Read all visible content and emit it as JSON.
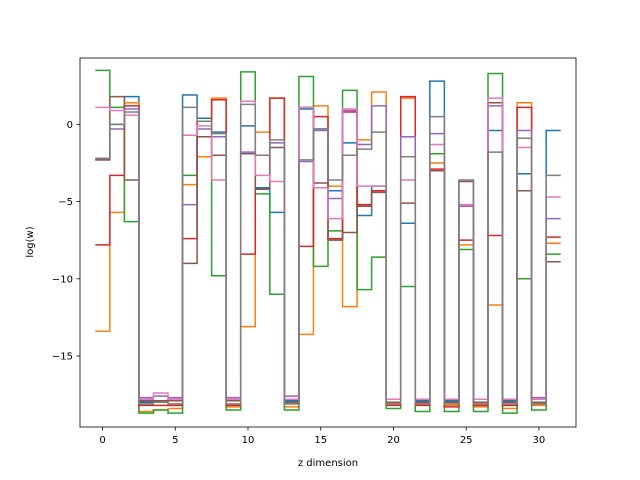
{
  "chart_data": {
    "type": "line",
    "style": "step",
    "title": "",
    "xlabel": "z dimension",
    "ylabel": "log(w)",
    "xlim": [
      -1.55,
      32.55
    ],
    "ylim": [
      -19.6,
      4.3
    ],
    "xticks": [
      0,
      5,
      10,
      15,
      20,
      25,
      30
    ],
    "yticks": [
      -15,
      -10,
      -5,
      0
    ],
    "grid": false,
    "legend": "none",
    "x": [
      0,
      1,
      2,
      3,
      4,
      5,
      6,
      7,
      8,
      9,
      10,
      11,
      12,
      13,
      14,
      15,
      16,
      17,
      18,
      19,
      20,
      21,
      22,
      23,
      24,
      25,
      26,
      27,
      28,
      29,
      30,
      31
    ],
    "series": [
      {
        "color": "#1f77b4",
        "values": [
          -2.3,
          0.0,
          1.8,
          -18.0,
          -18.0,
          -17.8,
          1.9,
          0.4,
          -0.5,
          -17.8,
          -0.1,
          -4.1,
          -5.7,
          -17.9,
          1.0,
          -0.3,
          -4.3,
          -1.2,
          -5.9,
          -4.0,
          -17.8,
          -6.4,
          -17.9,
          2.8,
          -17.9,
          -5.3,
          -17.8,
          -0.4,
          -17.9,
          -3.2,
          -17.8,
          -0.4
        ]
      },
      {
        "color": "#ff7f0e",
        "values": [
          -13.4,
          -5.7,
          1.4,
          -18.6,
          -18.5,
          -18.4,
          -3.9,
          -2.1,
          1.7,
          -18.3,
          -13.1,
          -0.5,
          1.7,
          -18.3,
          -13.6,
          1.2,
          -4.0,
          -11.8,
          -1.0,
          2.1,
          -18.1,
          1.7,
          -18.1,
          -2.5,
          -18.2,
          -7.8,
          -18.3,
          -11.7,
          -18.4,
          1.4,
          -18.2,
          -7.7
        ]
      },
      {
        "color": "#2ca02c",
        "values": [
          3.5,
          1.1,
          -6.3,
          -18.7,
          -18.5,
          -18.7,
          -3.3,
          -0.8,
          -9.8,
          -18.5,
          3.4,
          -4.5,
          -11.0,
          -18.5,
          3.1,
          -9.2,
          -6.9,
          2.2,
          -10.7,
          -8.6,
          -18.4,
          -10.5,
          -18.6,
          -1.9,
          -18.6,
          -8.1,
          -18.6,
          3.3,
          -18.7,
          -10.0,
          -18.5,
          -8.4
        ]
      },
      {
        "color": "#d62728",
        "values": [
          -7.8,
          -3.3,
          1.2,
          -18.2,
          -18.2,
          -18.2,
          -7.4,
          0.2,
          1.6,
          -18.2,
          -8.4,
          -2.0,
          1.7,
          -18.1,
          -7.9,
          0.5,
          -7.4,
          0.8,
          -5.2,
          -4.3,
          -18.2,
          1.8,
          -18.2,
          -2.9,
          -18.3,
          -7.5,
          -18.2,
          -7.2,
          -18.2,
          1.1,
          -18.1,
          -7.3
        ]
      },
      {
        "color": "#9467bd",
        "values": [
          -2.2,
          -0.3,
          1.0,
          -17.7,
          -17.6,
          -17.7,
          -5.2,
          -0.3,
          -0.8,
          -17.7,
          -1.8,
          -2.0,
          -1.2,
          -17.6,
          -2.4,
          -0.4,
          -4.8,
          0.9,
          -1.3,
          1.2,
          -17.8,
          -0.8,
          -17.8,
          -0.6,
          -17.8,
          -5.3,
          -17.8,
          1.2,
          -17.8,
          -0.4,
          -17.7,
          -6.1
        ]
      },
      {
        "color": "#8c564b",
        "values": [
          -2.3,
          1.8,
          -3.6,
          -17.9,
          -17.9,
          -17.9,
          -9.0,
          -0.8,
          -2.0,
          -17.9,
          -1.9,
          -4.2,
          -1.5,
          -18.0,
          1.1,
          -3.8,
          -7.5,
          -7.0,
          -5.3,
          -4.4,
          -18.0,
          -5.1,
          -18.0,
          -3.0,
          -18.0,
          -3.7,
          -18.0,
          1.4,
          -18.0,
          -4.3,
          -18.0,
          -8.9
        ]
      },
      {
        "color": "#e377c2",
        "values": [
          1.1,
          0.9,
          0.6,
          -17.8,
          -17.4,
          -17.8,
          -0.7,
          -0.1,
          -3.6,
          -17.8,
          1.5,
          -3.3,
          -3.7,
          -17.8,
          1.1,
          -4.1,
          -6.1,
          1.0,
          -4.0,
          -4.0,
          -17.8,
          -3.6,
          -17.8,
          -1.3,
          -17.8,
          -5.2,
          -17.8,
          1.7,
          -17.8,
          -1.5,
          -17.8,
          -4.7
        ]
      },
      {
        "color": "#7f7f7f",
        "values": [
          -2.2,
          0.0,
          0.8,
          -18.1,
          -18.0,
          -18.1,
          1.1,
          0.2,
          -0.6,
          -18.1,
          1.3,
          -2.0,
          -1.0,
          -18.1,
          -2.3,
          -0.3,
          -3.6,
          -2.0,
          -1.6,
          -0.5,
          -18.1,
          -2.1,
          -18.1,
          0.5,
          -18.1,
          -3.6,
          -18.1,
          -1.8,
          -18.1,
          -0.9,
          -18.1,
          -3.3
        ]
      }
    ]
  }
}
